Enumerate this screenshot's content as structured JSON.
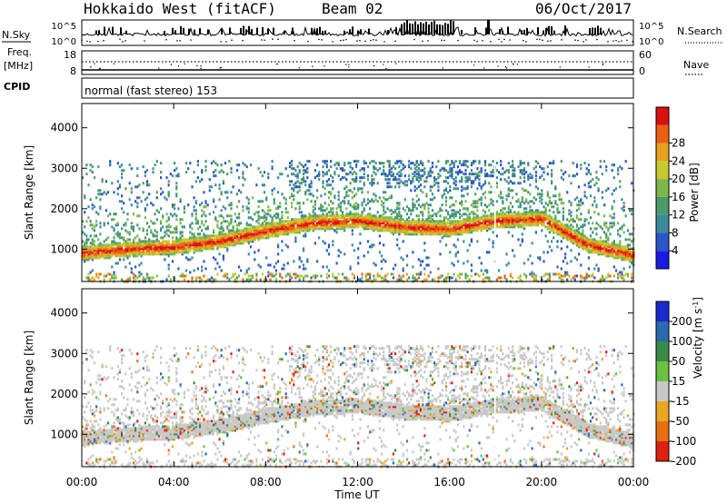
{
  "header": {
    "title": "Hokkaido West (fitACF)",
    "beam": "Beam 02",
    "date": "06/Oct/2017"
  },
  "noise_panel": {
    "left_label": "N.Sky",
    "right_label": "N.Search",
    "left_ticks": [
      "10^5",
      "10^0"
    ],
    "right_ticks": [
      "10^5",
      "10^0"
    ]
  },
  "freq_panel": {
    "left_label_line1": "Freq.",
    "left_label_line2": "[MHz]",
    "right_label": "Nave",
    "left_ticks": [
      "18",
      "8"
    ],
    "right_ticks": [
      "60",
      "0"
    ]
  },
  "cpid": {
    "label": "CPID",
    "text": "normal (fast stereo) 153"
  },
  "chart_data": [
    {
      "type": "heatmap",
      "title": "",
      "xlabel": "",
      "ylabel": "Slant Range [km]",
      "x_ticks": [
        "00:00",
        "04:00",
        "08:00",
        "12:00",
        "16:00",
        "20:00",
        "00:00"
      ],
      "y_ticks": [
        1000,
        2000,
        3000,
        4000
      ],
      "ylim": [
        200,
        4600
      ],
      "colorbar": {
        "label": "Power [dB]",
        "ticks": [
          4,
          8,
          12,
          16,
          20,
          24,
          28
        ],
        "colors": [
          "#1a1ae6",
          "#2a55c8",
          "#3a8a9a",
          "#4a9a6a",
          "#7ab84a",
          "#c8c830",
          "#e8a020",
          "#e86010",
          "#d81010"
        ]
      },
      "echo_band": {
        "hours": [
          0,
          2,
          4,
          6,
          8,
          10,
          12,
          14,
          16,
          18,
          20,
          22,
          24
        ],
        "range_km": [
          900,
          1000,
          1050,
          1200,
          1450,
          1650,
          1700,
          1550,
          1500,
          1700,
          1750,
          1100,
          850
        ]
      }
    },
    {
      "type": "heatmap",
      "title": "",
      "xlabel": "Time UT",
      "ylabel": "Slant Range [km]",
      "x_ticks": [
        "00:00",
        "04:00",
        "08:00",
        "12:00",
        "16:00",
        "20:00",
        "00:00"
      ],
      "y_ticks": [
        1000,
        2000,
        3000,
        4000
      ],
      "ylim": [
        200,
        4600
      ],
      "colorbar": {
        "label": "Velocity [m s",
        "label_sup": "-1",
        "label_end": "]",
        "ticks": [
          "200",
          "100",
          "50",
          "15",
          "-15",
          "-50",
          "-100",
          "-200"
        ],
        "colors": [
          "#1a2ad0",
          "#2a6ab0",
          "#3a8a4a",
          "#6ac040",
          "#c8c8c8",
          "#e8a820",
          "#e87010",
          "#e02010"
        ]
      }
    }
  ]
}
